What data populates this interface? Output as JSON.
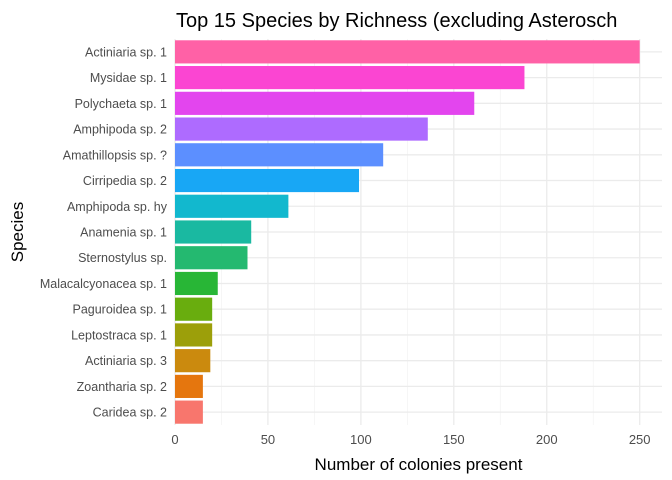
{
  "chart_data": {
    "type": "bar",
    "orientation": "horizontal",
    "title": "Top 15 Species by Richness (excluding Asterosch",
    "xlabel": "Number of colonies present",
    "ylabel": "Species",
    "xlim": [
      0,
      262
    ],
    "x_ticks": [
      0,
      50,
      100,
      150,
      200,
      250
    ],
    "grid": true,
    "legend": "none",
    "categories": [
      "Actiniaria sp. 1",
      "Mysidae sp. 1",
      "Polychaeta sp. 1",
      "Amphipoda sp. 2",
      "Amathillopsis sp. ?",
      "Cirripedia sp. 2",
      "Amphipoda sp. hy",
      "Anamenia sp. 1",
      "Sternostylus sp.",
      "Malacalcyonacea sp. 1",
      "Paguroidea sp. 1",
      "Leptostraca sp. 1",
      "Actiniaria sp. 3",
      "Zoantharia sp. 2",
      "Caridea sp. 2"
    ],
    "values": [
      250,
      188,
      161,
      136,
      112,
      99,
      61,
      41,
      39,
      23,
      20,
      20,
      19,
      15,
      15
    ],
    "colors": [
      "#FF61A6",
      "#FB45D2",
      "#E345EE",
      "#AE6BFF",
      "#5C8FFF",
      "#18A7F5",
      "#12B8CE",
      "#1AB9A1",
      "#24B970",
      "#28B636",
      "#69AD0E",
      "#9C9F0A",
      "#CB8A0E",
      "#E5760E",
      "#F8766D"
    ]
  }
}
